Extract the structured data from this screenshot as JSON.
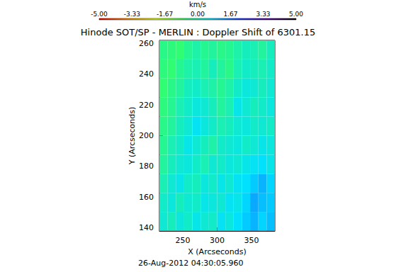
{
  "chart_data": {
    "type": "heatmap",
    "title": "Hinode SOT/SP - MERLIN : Doppler Shift of 6301.15",
    "annotation": "26-Aug-2012 04:30:05.960",
    "x_label": "X (Arcseconds)",
    "y_label": "Y (Arcseconds)",
    "xlim": [
      216,
      384
    ],
    "ylim": [
      138,
      262
    ],
    "xticks": [
      250,
      300,
      350
    ],
    "yticks": [
      140,
      160,
      180,
      200,
      220,
      240,
      260
    ],
    "grid": false,
    "x_edges": [
      216,
      228,
      240,
      252,
      264,
      276,
      288,
      300,
      312,
      324,
      336,
      348,
      360,
      372,
      384
    ],
    "y_edges": [
      138,
      150.4,
      162.8,
      175.2,
      187.6,
      200,
      212.4,
      224.8,
      237.2,
      249.6,
      262
    ],
    "cells": [
      [
        0.3,
        0.1,
        0.4,
        0.2,
        0.5,
        0.3,
        0.2,
        0.6,
        0.4,
        0.7,
        0.9,
        1.1,
        0.8,
        1.0
      ],
      [
        0.2,
        0.4,
        0.1,
        0.3,
        0.2,
        0.5,
        0.4,
        0.3,
        0.6,
        0.5,
        0.8,
        1.2,
        1.0,
        0.9
      ],
      [
        0.0,
        0.3,
        0.5,
        0.2,
        0.1,
        0.4,
        0.2,
        0.5,
        0.3,
        0.6,
        0.7,
        0.9,
        1.1,
        0.8
      ],
      [
        -0.2,
        0.1,
        0.3,
        0.4,
        0.2,
        0.0,
        0.3,
        0.2,
        0.4,
        0.3,
        0.5,
        0.6,
        0.7,
        0.5
      ],
      [
        -0.3,
        0.0,
        0.2,
        0.5,
        0.3,
        0.1,
        -0.1,
        0.2,
        0.3,
        0.4,
        0.2,
        0.3,
        0.5,
        0.4
      ],
      [
        -0.4,
        -0.2,
        0.1,
        0.3,
        0.6,
        0.4,
        0.2,
        0.0,
        0.1,
        0.3,
        0.4,
        0.2,
        0.3,
        0.2
      ],
      [
        -0.5,
        -0.3,
        0.0,
        0.2,
        0.4,
        0.3,
        0.1,
        -0.2,
        0.0,
        0.5,
        0.3,
        0.1,
        0.2,
        0.4
      ],
      [
        -0.6,
        -0.4,
        -0.2,
        0.1,
        0.2,
        0.0,
        -0.1,
        -0.3,
        -0.1,
        0.2,
        0.4,
        0.3,
        0.1,
        0.3
      ],
      [
        -0.5,
        -0.6,
        -0.3,
        -0.1,
        0.0,
        -0.2,
        0.1,
        -0.2,
        -0.4,
        0.0,
        0.2,
        0.1,
        0.0,
        0.2
      ],
      [
        -0.4,
        -0.5,
        -0.6,
        -0.3,
        -0.1,
        -0.3,
        -0.2,
        -0.4,
        -0.3,
        -0.1,
        0.1,
        0.0,
        -0.2,
        0.1
      ]
    ],
    "colorbar": {
      "title": "km/s",
      "range": [
        -5,
        5
      ],
      "ticks": [
        {
          "value": -5,
          "label": "-5.00"
        },
        -3.33,
        -1.67,
        {
          "value": 0,
          "label": "0.00"
        },
        1.67,
        3.33,
        {
          "value": 5,
          "label": "5.00"
        }
      ]
    }
  }
}
